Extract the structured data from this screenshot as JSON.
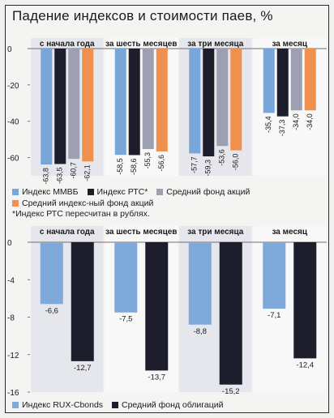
{
  "title": "Падение индексов и стоимости паев, %",
  "colors": {
    "mmvb": "#78a6d8",
    "rts": "#1d1d2b",
    "fund_stocks": "#9d9fb2",
    "fund_index": "#f0904e",
    "ruxcbonds": "#7fa9d8",
    "fund_bonds": "#1d1d2b"
  },
  "chart_data": [
    {
      "type": "bar",
      "categories": [
        "с начала года",
        "за шесть месяцев",
        "за три месяца",
        "за месяц"
      ],
      "series": [
        {
          "name": "Индекс ММВБ",
          "color": "#78a6d8",
          "values": [
            -63.8,
            -58.5,
            -57.7,
            -35.4
          ]
        },
        {
          "name": "Индекс РТС*",
          "color": "#1d1d2b",
          "values": [
            -63.5,
            -58.6,
            -59.3,
            -37.3
          ]
        },
        {
          "name": "Средний фонд акций",
          "color": "#9d9fb2",
          "values": [
            -60.7,
            -55.3,
            -53.6,
            -34.0
          ]
        },
        {
          "name": "Средний индексный фонд акций",
          "color": "#f0904e",
          "values": [
            -62.1,
            -56.6,
            -56.0,
            -34.0
          ]
        }
      ],
      "value_labels": [
        [
          "-63,8",
          "-58,5",
          "-57,7",
          "-35,4"
        ],
        [
          "-63,5",
          "-58,6",
          "-59,3",
          "-37,3"
        ],
        [
          "-60,7",
          "-55,3",
          "-53,6",
          "-34,0"
        ],
        [
          "-62,1",
          "-56,6",
          "-56,0",
          "-34,0"
        ]
      ],
      "yticks": [
        "0",
        "-20",
        "-40",
        "-60"
      ],
      "ylim": [
        -70,
        0
      ],
      "grid": false,
      "legend_placement": "bottom"
    },
    {
      "type": "bar",
      "categories": [
        "с начала года",
        "за шесть месяцев",
        "за три месяца",
        "за месяц"
      ],
      "series": [
        {
          "name": "Индекс RUX-Cbonds",
          "color": "#7fa9d8",
          "values": [
            -6.6,
            -7.5,
            -8.8,
            -7.1
          ]
        },
        {
          "name": "Средний фонд облигаций",
          "color": "#1d1d2b",
          "values": [
            -12.7,
            -13.7,
            -15.2,
            -12.4
          ]
        }
      ],
      "value_labels": [
        [
          "-6,6",
          "-7,5",
          "-8,8",
          "-7,1"
        ],
        [
          "-12,7",
          "-13,7",
          "-15,2",
          "-12,4"
        ]
      ],
      "yticks": [
        "0",
        "-4",
        "-8",
        "-12",
        "-16"
      ],
      "ylim": [
        -16,
        0
      ],
      "grid": false,
      "legend_placement": "bottom"
    }
  ],
  "legend_top": [
    {
      "label": "Индекс ММВБ",
      "color": "#78a6d8"
    },
    {
      "label": "Индекс РТС*",
      "color": "#1d1d2b"
    },
    {
      "label": "Средний фонд акций",
      "color": "#9d9fb2"
    },
    {
      "label": "Средний индекс-ный фонд акций",
      "color": "#f0904e"
    }
  ],
  "footnote": "*Индекс РТС пересчитан в рублях.",
  "legend_bottom": [
    {
      "label": "Индекс RUX-Cbonds",
      "color": "#7fa9d8"
    },
    {
      "label": "Средний фонд облигаций",
      "color": "#1d1d2b"
    }
  ]
}
